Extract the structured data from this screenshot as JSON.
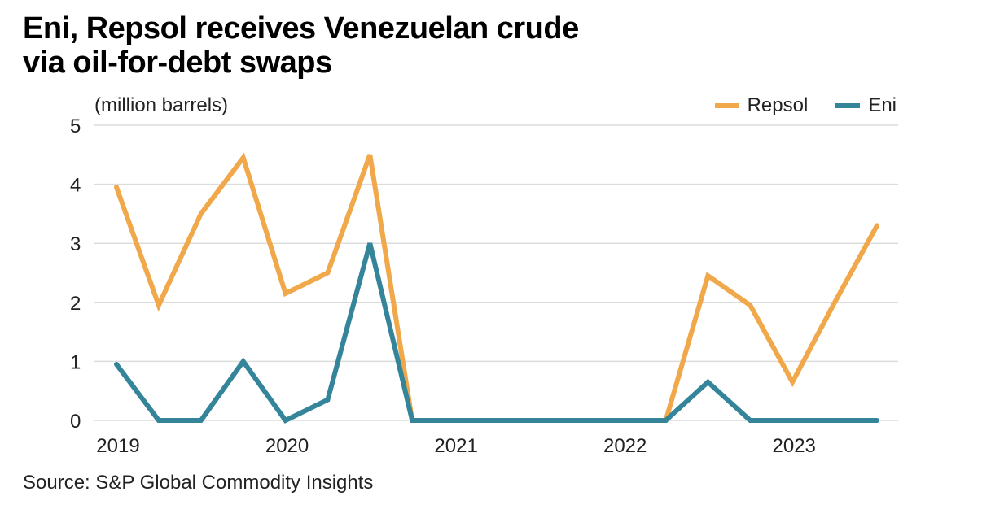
{
  "chart_data": {
    "type": "line",
    "title": "Eni, Repsol receives Venezuelan crude via oil-for-debt swaps",
    "title_lines": [
      "Eni, Repsol receives Venezuelan crude",
      "via oil-for-debt swaps"
    ],
    "ylabel": "(million barrels)",
    "xlabel": "",
    "ylim": [
      0,
      5
    ],
    "yticks": [
      0,
      1,
      2,
      3,
      4,
      5
    ],
    "grid": true,
    "legend_position": "top-right",
    "x": [
      "2019Q1",
      "2019Q2",
      "2019Q3",
      "2019Q4",
      "2020Q1",
      "2020Q2",
      "2020Q3",
      "2020Q4",
      "2021Q1",
      "2021Q2",
      "2021Q3",
      "2021Q4",
      "2022Q1",
      "2022Q2",
      "2022Q3",
      "2022Q4",
      "2023Q1",
      "2023Q2",
      "2023Q3"
    ],
    "xtick_labels": [
      {
        "label": "2019",
        "index": 0
      },
      {
        "label": "2020",
        "index": 4
      },
      {
        "label": "2021",
        "index": 8
      },
      {
        "label": "2022",
        "index": 12
      },
      {
        "label": "2023",
        "index": 16
      }
    ],
    "series": [
      {
        "name": "Repsol",
        "color": "#F0A84A",
        "values": [
          3.95,
          1.95,
          3.5,
          4.45,
          2.15,
          2.5,
          4.5,
          0,
          0,
          0,
          0,
          0,
          0,
          0,
          2.45,
          1.95,
          0.65,
          2.0,
          3.3
        ]
      },
      {
        "name": "Eni",
        "color": "#34849A",
        "values": [
          0.95,
          0,
          0,
          1.0,
          0,
          0.35,
          3.0,
          0,
          0,
          0,
          0,
          0,
          0,
          0,
          0.65,
          0,
          0,
          0,
          0
        ]
      }
    ],
    "source": "Source: S&P Global Commodity Insights"
  }
}
